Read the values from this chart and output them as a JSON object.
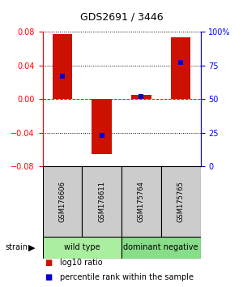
{
  "title": "GDS2691 / 3446",
  "samples": [
    "GSM176606",
    "GSM176611",
    "GSM175764",
    "GSM175765"
  ],
  "log10_ratios": [
    0.077,
    -0.065,
    0.005,
    0.073
  ],
  "percentile_ranks": [
    67,
    23,
    52,
    77
  ],
  "groups": [
    {
      "label": "wild type",
      "indices": [
        0,
        1
      ],
      "color": "#aaeea0"
    },
    {
      "label": "dominant negative",
      "indices": [
        2,
        3
      ],
      "color": "#88dd88"
    }
  ],
  "ylim": [
    -0.08,
    0.08
  ],
  "yticks_left": [
    -0.08,
    -0.04,
    0,
    0.04,
    0.08
  ],
  "yticks_right": [
    0,
    25,
    50,
    75,
    100
  ],
  "bar_color": "#cc1100",
  "marker_color": "#0000cc",
  "bar_width": 0.5,
  "sample_box_color": "#cccccc",
  "strain_label": "strain",
  "legend_ratio_label": "log10 ratio",
  "legend_percentile_label": "percentile rank within the sample",
  "title_fontsize": 9,
  "axis_fontsize": 7,
  "sample_fontsize": 6,
  "group_fontsize": 7,
  "legend_fontsize": 7
}
